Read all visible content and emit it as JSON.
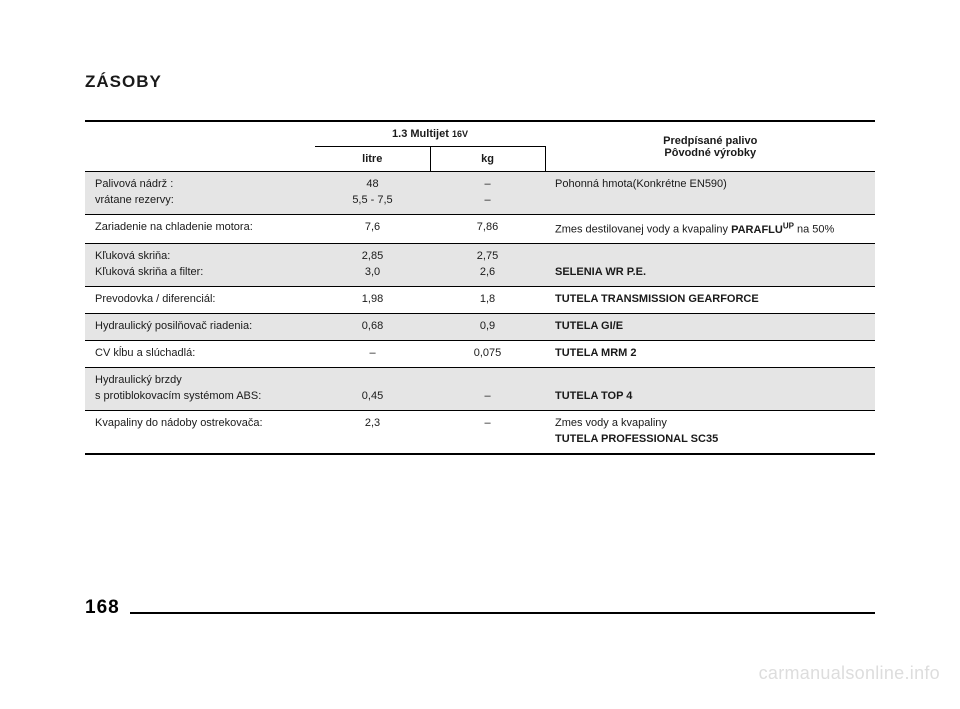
{
  "page": {
    "title": "ZÁSOBY",
    "number": "168",
    "watermark": "carmanualsonline.info"
  },
  "headers": {
    "group_title": "1.3 Multijet ",
    "group_title_small": "16V",
    "col_litre": "litre",
    "col_kg": "kg",
    "col_rec_line1": "Predpísané palivo",
    "col_rec_line2": "Pôvodné výrobky"
  },
  "rows": [
    {
      "label_html": "Palivová nádrž :<br>vrátane rezervy:",
      "litre_html": "48<br>5,5 - 7,5",
      "kg_html": "–<br>–",
      "rec_html": "Pohonná hmota(Konkrétne EN590)",
      "shaded": true
    },
    {
      "label_html": "Zariadenie na chladenie motora:",
      "litre_html": "7,6",
      "kg_html": "7,86",
      "rec_html": "Zmes destilovanej vody a kvapaliny <b>PARAFLU<span class=\"sup\">UP</span></b> na 50%",
      "shaded": false
    },
    {
      "label_html": "Kľuková skriňa:<br>Kľuková skriňa a filter:",
      "litre_html": "2,85<br>3,0",
      "kg_html": "2,75<br>2,6",
      "rec_html": "<br><b>SELENIA WR P.E.</b>",
      "shaded": true
    },
    {
      "label_html": "Prevodovka / diferenciál:",
      "litre_html": "1,98",
      "kg_html": "1,8",
      "rec_html": "<b>TUTELA TRANSMISSION GEARFORCE</b>",
      "shaded": false
    },
    {
      "label_html": "Hydraulický posilňovač riadenia:",
      "litre_html": "0,68",
      "kg_html": "0,9",
      "rec_html": "<b>TUTELA GI/E</b>",
      "shaded": true
    },
    {
      "label_html": "CV kĺbu a slúchadlá:",
      "litre_html": "–",
      "kg_html": "0,075",
      "rec_html": "<b>TUTELA MRM 2</b>",
      "shaded": false
    },
    {
      "label_html": "Hydraulický brzdy<br>s protiblokovacím systémom ABS:",
      "litre_html": "<br>0,45",
      "kg_html": "<br>–",
      "rec_html": "<br><b>TUTELA TOP 4</b>",
      "shaded": true
    },
    {
      "label_html": "Kvapaliny do nádoby ostrekovača:",
      "litre_html": "2,3",
      "kg_html": "–",
      "rec_html": "Zmes vody a kvapaliny<br><b>TUTELA PROFESSIONAL SC35</b>",
      "shaded": false,
      "last": true
    }
  ],
  "styling": {
    "page_bg": "#ffffff",
    "text_color": "#1a1a1a",
    "shaded_row_bg": "#e5e5e5",
    "border_color": "#000000",
    "watermark_color": "#dddddd",
    "title_fontsize": 17,
    "body_fontsize": 11,
    "pagenum_fontsize": 19
  }
}
